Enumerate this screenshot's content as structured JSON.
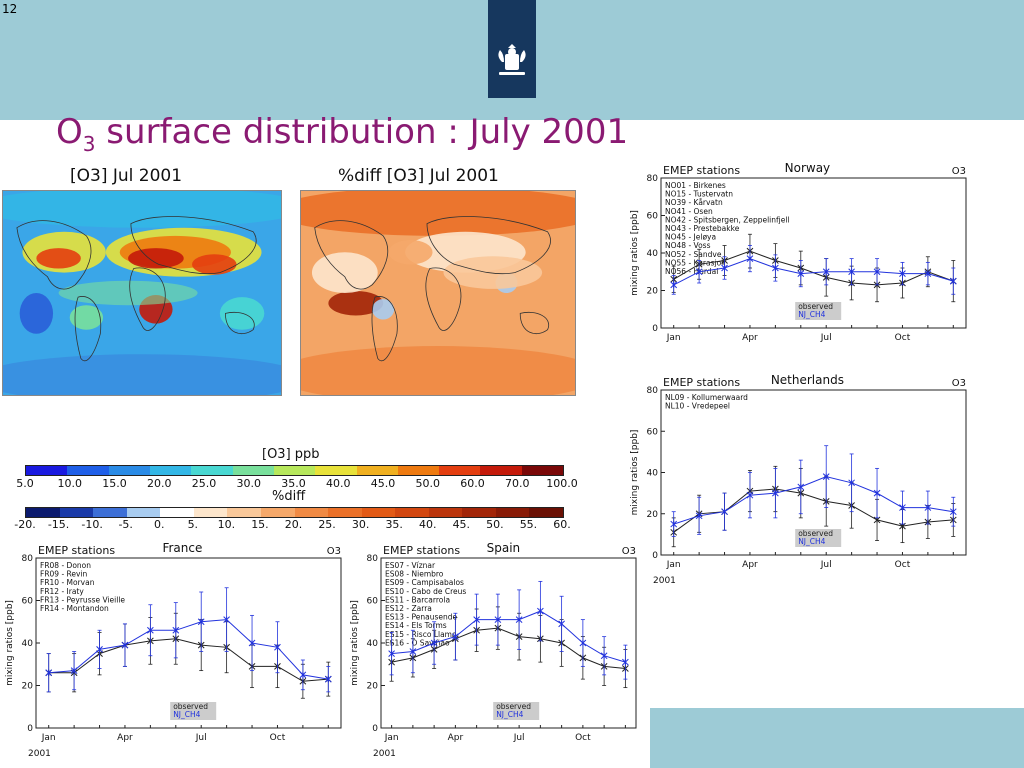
{
  "slide": {
    "number": "12",
    "title_main": "O",
    "title_sub": "3",
    "title_rest": " surface distribution : July 2001"
  },
  "maps": {
    "left_title": "[O3] Jul 2001",
    "right_title": "%diff [O3] Jul 2001",
    "colorbar1": {
      "label": "[O3] ppb",
      "ticks": [
        "5.0",
        "10.0",
        "15.0",
        "20.0",
        "25.0",
        "30.0",
        "35.0",
        "40.0",
        "45.0",
        "50.0",
        "60.0",
        "70.0",
        "100.0"
      ],
      "colors": [
        "#1a1ae0",
        "#1f5fe8",
        "#2a8be6",
        "#33b7e6",
        "#49d8d2",
        "#79e09c",
        "#b7e85c",
        "#e8e23a",
        "#f0b020",
        "#ee7a10",
        "#e43e10",
        "#c41a0a",
        "#7a0808"
      ]
    },
    "colorbar2": {
      "label": "%diff",
      "ticks": [
        "-20.",
        "-15.",
        "-10.",
        "-5.",
        "0.",
        "5.",
        "10.",
        "15.",
        "20.",
        "25.",
        "30.",
        "35.",
        "40.",
        "45.",
        "50.",
        "55.",
        "60."
      ],
      "colors": [
        "#0b1a6e",
        "#1a3aa8",
        "#3d6fd6",
        "#a8ccf0",
        "#ffffff",
        "#fde6cc",
        "#f9c89a",
        "#f5a86a",
        "#f08a44",
        "#ea7028",
        "#e25a16",
        "#d24710",
        "#bb350c",
        "#a22508",
        "#881a06",
        "#6a1004"
      ]
    }
  },
  "chart_data": [
    {
      "type": "line",
      "panel_label": "Norway",
      "header": "EMEP stations",
      "corner": "O3",
      "stations": [
        "NO01 - Birkenes",
        "NO15 - Tustervatn",
        "NO39 - Kårvatn",
        "NO41 - Osen",
        "NO42 - Spitsbergen, Zeppelinfjell",
        "NO43 - Prestebakke",
        "NO45 - Jeløya",
        "NO48 - Voss",
        "NO52 - Sandve",
        "NO55 - Karasjok",
        "NO56 - Hurdal"
      ],
      "ylabel": "mixing ratios [ppb]",
      "ylim": [
        0,
        80
      ],
      "yticks": [
        "0",
        "20",
        "40",
        "60",
        "80"
      ],
      "xticks": [
        "Jan",
        "Apr",
        "Jul",
        "Oct"
      ],
      "xlabel": "",
      "legend": [
        "observed",
        "NJ_CH4"
      ],
      "x": [
        1,
        2,
        3,
        4,
        5,
        6,
        7,
        8,
        9,
        10,
        11,
        12
      ],
      "series": [
        {
          "name": "observed",
          "color": "#222222",
          "values": [
            26,
            34,
            36,
            41,
            36,
            32,
            27,
            24,
            23,
            24,
            30,
            25
          ],
          "err": [
            7,
            8,
            8,
            9,
            9,
            9,
            10,
            9,
            9,
            8,
            8,
            11
          ]
        },
        {
          "name": "NJ_CH4",
          "color": "#2233dd",
          "values": [
            23,
            30,
            32,
            37,
            32,
            29,
            30,
            30,
            30,
            29,
            29,
            25
          ],
          "err": [
            5,
            6,
            6,
            7,
            7,
            7,
            7,
            7,
            7,
            6,
            6,
            7
          ]
        }
      ]
    },
    {
      "type": "line",
      "panel_label": "Netherlands",
      "header": "EMEP stations",
      "corner": "O3",
      "stations": [
        "NL09 - Kollumerwaard",
        "NL10 - Vredepeel"
      ],
      "ylabel": "mixing ratios [ppb]",
      "ylim": [
        0,
        80
      ],
      "yticks": [
        "0",
        "20",
        "40",
        "60",
        "80"
      ],
      "xticks": [
        "Jan",
        "Apr",
        "Jul",
        "Oct"
      ],
      "xlabel": "2001",
      "legend": [
        "observed",
        "NJ_CH4"
      ],
      "x": [
        1,
        2,
        3,
        4,
        5,
        6,
        7,
        8,
        9,
        10,
        11,
        12
      ],
      "series": [
        {
          "name": "observed",
          "color": "#222222",
          "values": [
            11,
            20,
            21,
            31,
            32,
            30,
            26,
            24,
            17,
            14,
            16,
            17
          ],
          "err": [
            7,
            9,
            9,
            10,
            11,
            12,
            12,
            11,
            10,
            8,
            8,
            8
          ]
        },
        {
          "name": "NJ_CH4",
          "color": "#2233dd",
          "values": [
            15,
            19,
            21,
            29,
            30,
            33,
            38,
            35,
            30,
            23,
            23,
            21
          ],
          "err": [
            6,
            9,
            9,
            11,
            12,
            13,
            15,
            14,
            12,
            8,
            8,
            7
          ]
        }
      ]
    },
    {
      "type": "line",
      "panel_label": "France",
      "header": "EMEP stations",
      "corner": "O3",
      "stations": [
        "FR08 - Donon",
        "FR09 - Revin",
        "FR10 - Morvan",
        "FR12 - Iraty",
        "FR13 - Peyrusse Vieille",
        "FR14 - Montandon"
      ],
      "ylabel": "mixing ratios [ppb]",
      "ylim": [
        0,
        80
      ],
      "yticks": [
        "0",
        "20",
        "40",
        "60",
        "80"
      ],
      "xticks": [
        "Jan",
        "Apr",
        "Jul",
        "Oct"
      ],
      "xlabel": "2001",
      "legend": [
        "observed",
        "NJ_CH4"
      ],
      "x": [
        1,
        2,
        3,
        4,
        5,
        6,
        7,
        8,
        9,
        10,
        11,
        12
      ],
      "series": [
        {
          "name": "observed",
          "color": "#222222",
          "values": [
            26,
            26,
            35,
            39,
            41,
            42,
            39,
            38,
            29,
            29,
            22,
            23
          ],
          "err": [
            9,
            9,
            10,
            10,
            11,
            12,
            12,
            12,
            10,
            10,
            8,
            8
          ]
        },
        {
          "name": "NJ_CH4",
          "color": "#2233dd",
          "values": [
            26,
            27,
            37,
            39,
            46,
            46,
            50,
            51,
            40,
            38,
            25,
            23
          ],
          "err": [
            9,
            9,
            9,
            10,
            12,
            13,
            14,
            15,
            13,
            12,
            7,
            6
          ]
        }
      ]
    },
    {
      "type": "line",
      "panel_label": "Spain",
      "header": "EMEP stations",
      "corner": "O3",
      "stations": [
        "ES07 - Víznar",
        "ES08 - Niembro",
        "ES09 - Campisabalos",
        "ES10 - Cabo de Creus",
        "ES11 - Barcarrola",
        "ES12 - Zarra",
        "ES13 - Penausende",
        "ES14 - Els Torms",
        "ES15 - Risco Llamo",
        "ES16 - O Saviñao"
      ],
      "ylabel": "mixing ratios [ppb]",
      "ylim": [
        0,
        80
      ],
      "yticks": [
        "0",
        "20",
        "40",
        "60",
        "80"
      ],
      "xticks": [
        "Jan",
        "Apr",
        "Jul",
        "Oct"
      ],
      "xlabel": "2001",
      "legend": [
        "observed",
        "NJ_CH4"
      ],
      "x": [
        1,
        2,
        3,
        4,
        5,
        6,
        7,
        8,
        9,
        10,
        11,
        12
      ],
      "series": [
        {
          "name": "observed",
          "color": "#222222",
          "values": [
            31,
            33,
            37,
            42,
            46,
            47,
            43,
            42,
            40,
            33,
            29,
            28
          ],
          "err": [
            9,
            9,
            9,
            10,
            10,
            10,
            11,
            11,
            11,
            10,
            9,
            9
          ]
        },
        {
          "name": "NJ_CH4",
          "color": "#2233dd",
          "values": [
            35,
            36,
            40,
            43,
            51,
            51,
            51,
            55,
            49,
            40,
            34,
            31
          ],
          "err": [
            10,
            10,
            10,
            11,
            12,
            12,
            14,
            14,
            13,
            11,
            9,
            8
          ]
        }
      ]
    }
  ]
}
